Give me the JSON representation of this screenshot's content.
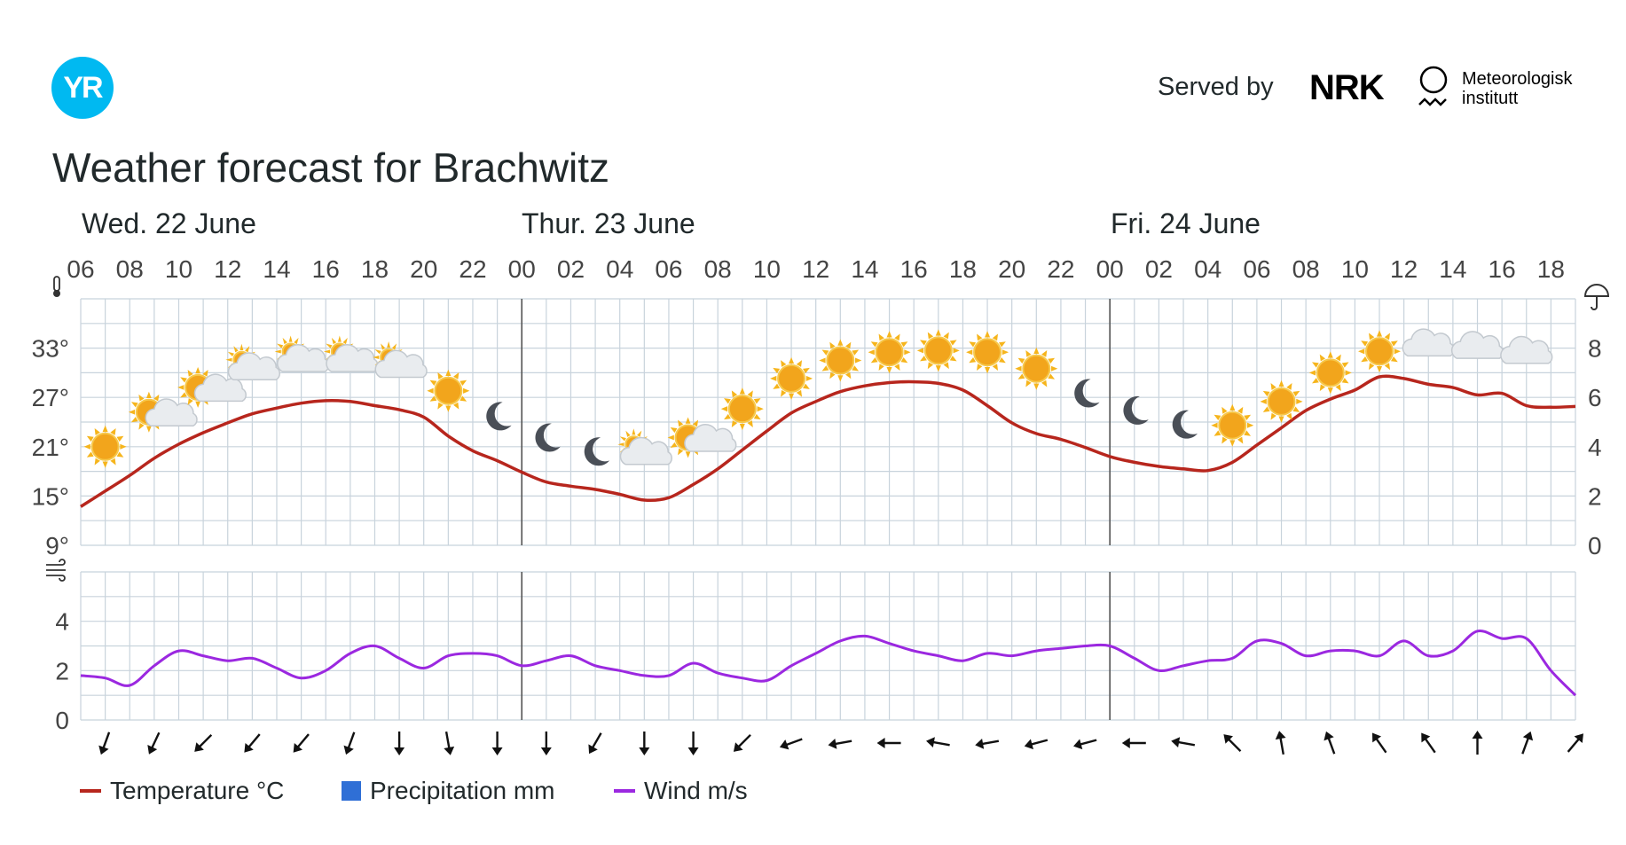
{
  "header": {
    "logo_text": "YR",
    "served_by": "Served by",
    "nrk_logo": "NRK",
    "met_line1": "Meteorologisk",
    "met_line2": "institutt",
    "title": "Weather forecast for Brachwitz"
  },
  "colors": {
    "temperature": "#b7261d",
    "precipitation": "#2f6fd6",
    "wind": "#9b28e0",
    "grid": "#c8d3dc",
    "day_separator": "#555555"
  },
  "chart_data": {
    "type": "line",
    "day_labels": [
      "Wed. 22 June",
      "Thur. 23 June",
      "Fri. 24 June"
    ],
    "hour_labels": [
      "06",
      "08",
      "10",
      "12",
      "14",
      "16",
      "18",
      "20",
      "22",
      "00",
      "02",
      "04",
      "06",
      "08",
      "10",
      "12",
      "14",
      "16",
      "18",
      "20",
      "22",
      "00",
      "02",
      "04",
      "06",
      "08",
      "10",
      "12",
      "14",
      "16",
      "18"
    ],
    "temp_axis": {
      "ticks": [
        "9°",
        "15°",
        "21°",
        "27°",
        "33°"
      ],
      "range": [
        9,
        39
      ],
      "icon": "thermometer-icon"
    },
    "precip_axis": {
      "ticks": [
        "0",
        "2",
        "4",
        "6",
        "8"
      ],
      "range": [
        0,
        10
      ],
      "icon": "umbrella-icon"
    },
    "wind_axis": {
      "ticks": [
        "0",
        "2",
        "4"
      ],
      "range": [
        0,
        6
      ],
      "icon": "wind-icon"
    },
    "hours_from_start": [
      0,
      1,
      2,
      3,
      4,
      5,
      6,
      7,
      8,
      9,
      10,
      11,
      12,
      13,
      14,
      15,
      16,
      17,
      18,
      19,
      20,
      21,
      22,
      23,
      24,
      25,
      26,
      27,
      28,
      29,
      30,
      31,
      32,
      33,
      34,
      35,
      36,
      37,
      38,
      39,
      40,
      41,
      42,
      43,
      44,
      45,
      46,
      47,
      48,
      49,
      50,
      51,
      52,
      53,
      54,
      55,
      56,
      57,
      58,
      59,
      60,
      61
    ],
    "series": [
      {
        "name": "Temperature °C",
        "unit": "°C",
        "values": [
          13.7,
          15.6,
          17.5,
          19.6,
          21.3,
          22.7,
          23.9,
          25.0,
          25.7,
          26.3,
          26.6,
          26.5,
          26.0,
          25.5,
          24.6,
          22.3,
          20.5,
          19.3,
          17.9,
          16.7,
          16.2,
          15.8,
          15.2,
          14.5,
          14.8,
          16.4,
          18.3,
          20.6,
          22.9,
          25.1,
          26.5,
          27.7,
          28.4,
          28.8,
          28.9,
          28.7,
          27.9,
          26.0,
          23.9,
          22.6,
          21.9,
          20.9,
          19.8,
          19.1,
          18.6,
          18.3,
          18.1,
          19.1,
          21.2,
          23.3,
          25.4,
          26.8,
          27.9,
          29.5,
          29.3,
          28.6,
          28.2,
          27.3,
          27.5,
          26.0,
          25.8,
          25.9
        ]
      },
      {
        "name": "Precipitation mm",
        "unit": "mm",
        "values": []
      },
      {
        "name": "Wind m/s",
        "unit": "m/s",
        "values": [
          1.8,
          1.7,
          1.4,
          2.2,
          2.8,
          2.6,
          2.4,
          2.5,
          2.1,
          1.7,
          2.0,
          2.7,
          3.0,
          2.5,
          2.1,
          2.6,
          2.7,
          2.6,
          2.2,
          2.4,
          2.6,
          2.2,
          2.0,
          1.8,
          1.8,
          2.3,
          1.9,
          1.7,
          1.6,
          2.2,
          2.7,
          3.2,
          3.4,
          3.1,
          2.8,
          2.6,
          2.4,
          2.7,
          2.6,
          2.8,
          2.9,
          3.0,
          3.0,
          2.5,
          2.0,
          2.2,
          2.4,
          2.5,
          3.2,
          3.1,
          2.6,
          2.8,
          2.8,
          2.6,
          3.2,
          2.6,
          2.8,
          3.6,
          3.3,
          3.3,
          2.0,
          1.0
        ]
      }
    ],
    "weather_symbols": [
      {
        "hour": 1,
        "temp": 21.0,
        "symbol": "sun"
      },
      {
        "hour": 3,
        "temp": 25.0,
        "symbol": "partly-cloudy"
      },
      {
        "hour": 5,
        "temp": 28.0,
        "symbol": "partly-cloudy"
      },
      {
        "hour": 7,
        "temp": 30.5,
        "symbol": "cloudy-sun"
      },
      {
        "hour": 9,
        "temp": 31.5,
        "symbol": "cloudy-sun"
      },
      {
        "hour": 11,
        "temp": 31.5,
        "symbol": "cloudy-sun"
      },
      {
        "hour": 13,
        "temp": 30.8,
        "symbol": "cloudy-sun"
      },
      {
        "hour": 15,
        "temp": 27.8,
        "symbol": "sun"
      },
      {
        "hour": 17,
        "temp": 24.8,
        "symbol": "moon"
      },
      {
        "hour": 19,
        "temp": 22.2,
        "symbol": "moon"
      },
      {
        "hour": 21,
        "temp": 20.5,
        "symbol": "moon"
      },
      {
        "hour": 23,
        "temp": 20.2,
        "symbol": "cloudy-sun"
      },
      {
        "hour": 25,
        "temp": 21.9,
        "symbol": "partly-cloudy"
      },
      {
        "hour": 27,
        "temp": 25.6,
        "symbol": "sun"
      },
      {
        "hour": 29,
        "temp": 29.3,
        "symbol": "sun"
      },
      {
        "hour": 31,
        "temp": 31.5,
        "symbol": "sun"
      },
      {
        "hour": 33,
        "temp": 32.5,
        "symbol": "sun"
      },
      {
        "hour": 35,
        "temp": 32.7,
        "symbol": "sun"
      },
      {
        "hour": 37,
        "temp": 32.5,
        "symbol": "sun"
      },
      {
        "hour": 39,
        "temp": 30.5,
        "symbol": "sun"
      },
      {
        "hour": 41,
        "temp": 27.6,
        "symbol": "moon"
      },
      {
        "hour": 43,
        "temp": 25.5,
        "symbol": "moon"
      },
      {
        "hour": 45,
        "temp": 23.8,
        "symbol": "moon"
      },
      {
        "hour": 47,
        "temp": 23.6,
        "symbol": "sun"
      },
      {
        "hour": 49,
        "temp": 26.5,
        "symbol": "sun"
      },
      {
        "hour": 51,
        "temp": 30.0,
        "symbol": "sun"
      },
      {
        "hour": 53,
        "temp": 32.6,
        "symbol": "sun"
      },
      {
        "hour": 55,
        "temp": 33.4,
        "symbol": "cloud"
      },
      {
        "hour": 57,
        "temp": 33.1,
        "symbol": "cloud"
      },
      {
        "hour": 59,
        "temp": 32.5,
        "symbol": "cloud"
      }
    ],
    "wind_direction_deg": [
      20,
      25,
      45,
      40,
      40,
      20,
      0,
      350,
      0,
      0,
      30,
      0,
      0,
      45,
      70,
      80,
      90,
      100,
      80,
      75,
      75,
      90,
      100,
      135,
      170,
      160,
      145,
      145,
      180,
      200,
      220
    ],
    "legend": [
      "Temperature °C",
      "Precipitation mm",
      "Wind m/s"
    ],
    "grid": true
  }
}
